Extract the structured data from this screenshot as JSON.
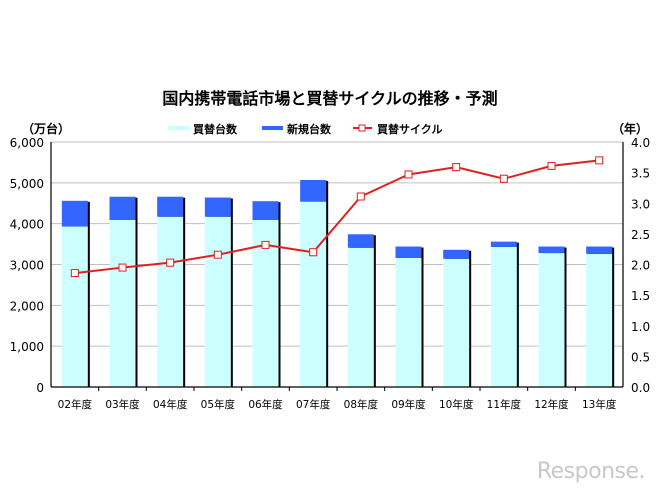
{
  "chart_data": {
    "type": "bar",
    "title": "国内携帯電話市場と買替サイクルの推移・予測",
    "left_unit": "（万台）",
    "right_unit": "（年）",
    "categories": [
      "02年度",
      "03年度",
      "04年度",
      "05年度",
      "06年度",
      "07年度",
      "08年度",
      "09年度",
      "10年度",
      "11年度",
      "12年度",
      "13年度"
    ],
    "stacked": true,
    "series": [
      {
        "name": "買替台数",
        "kind": "bar",
        "axis": "left",
        "color": "#ccffff",
        "values": [
          3930,
          4090,
          4170,
          4170,
          4090,
          4540,
          3410,
          3160,
          3140,
          3430,
          3280,
          3260
        ]
      },
      {
        "name": "新規台数",
        "kind": "bar",
        "axis": "left",
        "color": "#3366ff",
        "values": [
          630,
          570,
          490,
          470,
          460,
          530,
          330,
          280,
          220,
          130,
          160,
          180
        ]
      },
      {
        "name": "買替サイクル",
        "kind": "line",
        "axis": "right",
        "color": "#e02020",
        "values": [
          1.86,
          1.95,
          2.03,
          2.16,
          2.32,
          2.2,
          3.11,
          3.47,
          3.59,
          3.4,
          3.61,
          3.7
        ]
      }
    ],
    "left_axis": {
      "range": [
        0,
        6000
      ],
      "ticks": [
        "0",
        "1,000",
        "2,000",
        "3,000",
        "4,000",
        "5,000",
        "6,000"
      ]
    },
    "right_axis": {
      "range": [
        0,
        4.0
      ],
      "ticks": [
        "0.0",
        "0.5",
        "1.0",
        "1.5",
        "2.0",
        "2.5",
        "3.0",
        "3.5",
        "4.0"
      ]
    },
    "grid": true,
    "legend_position": "top"
  },
  "watermark": "Response."
}
